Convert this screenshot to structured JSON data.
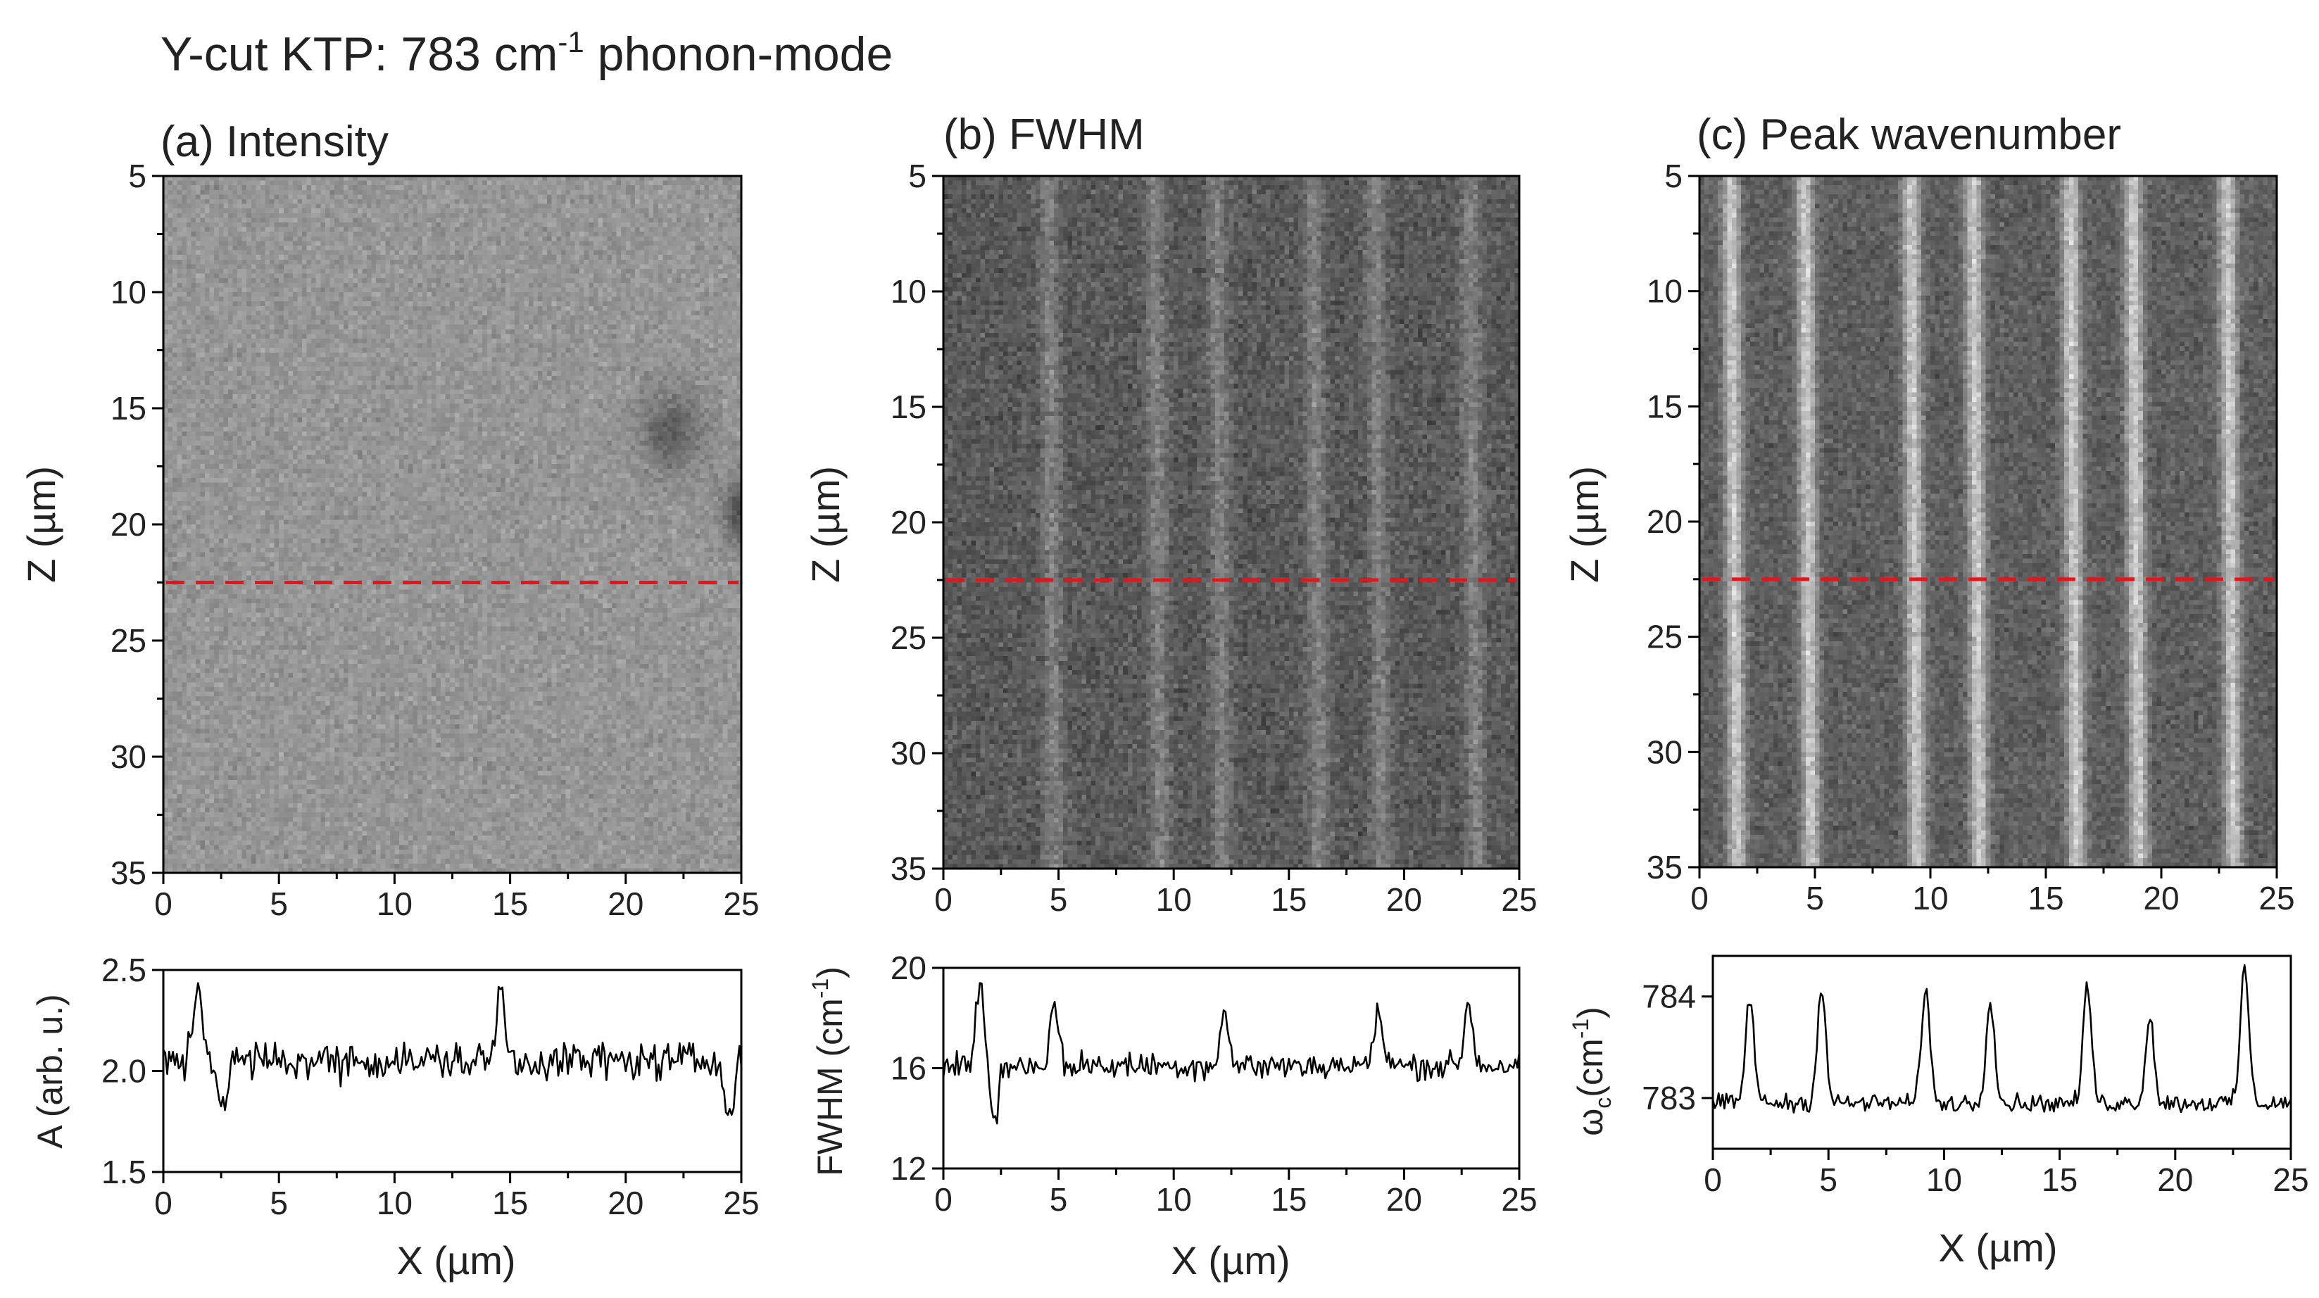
{
  "figure": {
    "title_main": "Y-cut KTP: 783 cm",
    "title_sup": "-1",
    "title_rest": " phonon-mode"
  },
  "chart_data": [
    {
      "type": "heatmap",
      "panel": "a",
      "title": "(a) Intensity",
      "xlabel": "X (µm)",
      "ylabel": "Z (µm)",
      "xlim": [
        0,
        25
      ],
      "ylim": [
        5,
        35
      ],
      "xticks": [
        0,
        5,
        10,
        15,
        20,
        25
      ],
      "yticks": [
        5,
        10,
        15,
        20,
        25,
        30,
        35
      ],
      "colormap": "grayscale",
      "texture": "uniform gray noise, darker spots near X=22 Z=16 and X=25 Z=19.5",
      "cut_line": {
        "z": 22.5,
        "color": "#e8141c",
        "style": "dashed"
      },
      "bright_stripes_x": []
    },
    {
      "type": "heatmap",
      "panel": "b",
      "title": "(b) FWHM",
      "xlabel": "X (µm)",
      "ylabel": "Z (µm)",
      "xlim": [
        0,
        25
      ],
      "ylim": [
        5,
        35
      ],
      "xticks": [
        0,
        5,
        10,
        15,
        20,
        25
      ],
      "yticks": [
        5,
        10,
        15,
        20,
        25,
        30,
        35
      ],
      "colormap": "grayscale",
      "texture": "dark gray noise with faint vertical stripes",
      "cut_line": {
        "z": 22.5,
        "color": "#e8141c",
        "style": "dashed"
      },
      "bright_stripes_x": [
        4.7,
        9.3,
        12.0,
        16.2,
        18.9,
        23.0
      ]
    },
    {
      "type": "heatmap",
      "panel": "c",
      "title": "(c) Peak wavenumber",
      "xlabel": "X (µm)",
      "ylabel": "Z (µm)",
      "xlim": [
        0,
        25
      ],
      "ylim": [
        5,
        35
      ],
      "xticks": [
        0,
        5,
        10,
        15,
        20,
        25
      ],
      "yticks": [
        5,
        10,
        15,
        20,
        25,
        30,
        35
      ],
      "colormap": "grayscale",
      "texture": "dark gray noise with bright vertical domain-wall stripes",
      "cut_line": {
        "z": 22.5,
        "color": "#e8141c",
        "style": "dashed"
      },
      "bright_stripes_x": [
        1.5,
        4.7,
        9.3,
        12.0,
        16.2,
        18.9,
        23.0
      ]
    },
    {
      "type": "line",
      "panel": "a-profile",
      "xlabel": "X (µm)",
      "ylabel": "A (arb. u.)",
      "xlim": [
        0,
        25
      ],
      "ylim": [
        1.5,
        2.5
      ],
      "xticks": [
        0,
        5,
        10,
        15,
        20,
        25
      ],
      "yticks": [
        1.5,
        2.0,
        2.5
      ],
      "ytick_labels": [
        "1.5",
        "2.0",
        "2.5"
      ],
      "series": [
        {
          "name": "A",
          "baseline": 2.05,
          "noise_amplitude": 0.14,
          "peaks": [
            {
              "x": 1.5,
              "y": 2.45
            },
            {
              "x": 14.6,
              "y": 2.4
            },
            {
              "x": 2.6,
              "y": 1.82
            },
            {
              "x": 24.5,
              "y": 1.8
            }
          ]
        }
      ]
    },
    {
      "type": "line",
      "panel": "b-profile",
      "xlabel": "X (µm)",
      "ylabel": "FWHM (cm",
      "ylabel_sup": "-1",
      "ylabel_end": ")",
      "xlim": [
        0,
        25
      ],
      "ylim": [
        12,
        20
      ],
      "xticks": [
        0,
        5,
        10,
        15,
        20,
        25
      ],
      "yticks": [
        12,
        16,
        20
      ],
      "ytick_labels": [
        "12",
        "16",
        "20"
      ],
      "series": [
        {
          "name": "FWHM",
          "baseline": 16.1,
          "noise_amplitude": 0.8,
          "peaks": [
            {
              "x": 1.6,
              "y": 19.4
            },
            {
              "x": 4.8,
              "y": 18.5
            },
            {
              "x": 12.2,
              "y": 18.2
            },
            {
              "x": 18.9,
              "y": 18.3
            },
            {
              "x": 22.8,
              "y": 18.6
            },
            {
              "x": 2.2,
              "y": 14.0
            }
          ]
        }
      ]
    },
    {
      "type": "line",
      "panel": "c-profile",
      "xlabel": "X (µm)",
      "ylabel_main": "ω",
      "ylabel_sub": "c",
      "ylabel_rest": "(cm",
      "ylabel_sup": "-1",
      "ylabel_end": ")",
      "xlim": [
        0,
        25
      ],
      "ylim": [
        782.5,
        784.4
      ],
      "xticks": [
        0,
        5,
        10,
        15,
        20,
        25
      ],
      "yticks": [
        783,
        784
      ],
      "ytick_labels": [
        "783",
        "784"
      ],
      "series": [
        {
          "name": "omega_c",
          "baseline": 782.95,
          "noise_amplitude": 0.13,
          "peaks": [
            {
              "x": 1.6,
              "y": 784.0
            },
            {
              "x": 4.7,
              "y": 784.1
            },
            {
              "x": 9.2,
              "y": 784.1
            },
            {
              "x": 12.0,
              "y": 784.0
            },
            {
              "x": 16.2,
              "y": 784.1
            },
            {
              "x": 18.9,
              "y": 783.8
            },
            {
              "x": 23.0,
              "y": 784.3
            }
          ]
        }
      ]
    }
  ]
}
